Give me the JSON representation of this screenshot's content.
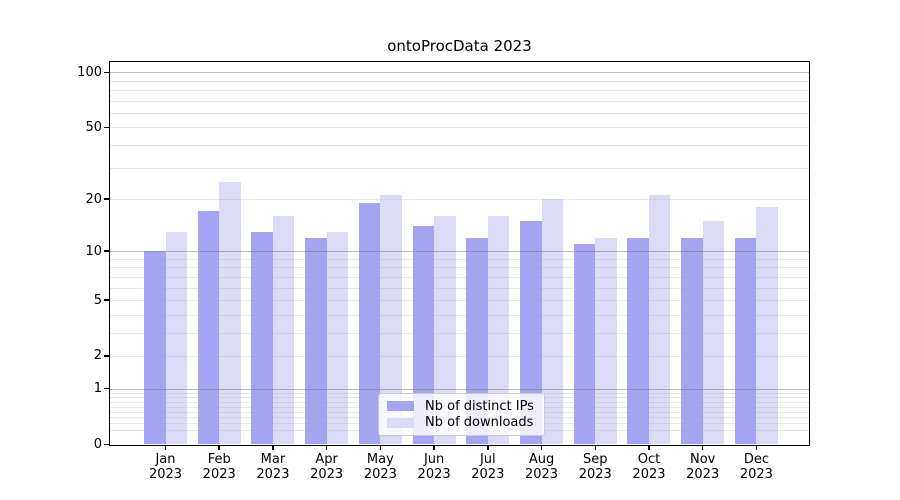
{
  "chart_data": {
    "type": "bar",
    "title": "ontoProcData 2023",
    "categories": [
      "Jan",
      "Feb",
      "Mar",
      "Apr",
      "May",
      "Jun",
      "Jul",
      "Aug",
      "Sep",
      "Oct",
      "Nov",
      "Dec"
    ],
    "year_label": "2023",
    "series": [
      {
        "key": "distinct-ips",
        "name": "Nb of distinct IPs",
        "color": "#a4a4f2",
        "values": [
          10,
          17,
          13,
          12,
          19,
          14,
          12,
          15,
          11,
          12,
          12,
          12
        ]
      },
      {
        "key": "downloads",
        "name": "Nb of downloads",
        "color": "#dbdbf8",
        "values": [
          13,
          25,
          16,
          13,
          21,
          16,
          16,
          20,
          12,
          21,
          15,
          18
        ]
      }
    ],
    "yscale": "log1p",
    "ylim": [
      0,
      114.6
    ],
    "yticks": [
      {
        "v": 100,
        "label": "100"
      },
      {
        "v": 50,
        "label": "50"
      },
      {
        "v": 20,
        "label": "20"
      },
      {
        "v": 10,
        "label": "10"
      },
      {
        "v": 5,
        "label": "5"
      },
      {
        "v": 2,
        "label": "2"
      },
      {
        "v": 1,
        "label": "1"
      },
      {
        "v": 0,
        "label": "0"
      }
    ],
    "major_grid_values": [
      1,
      10,
      100
    ],
    "minor_grid_decades": [
      0.1,
      1,
      10
    ],
    "minor_grid_subs": [
      2,
      3,
      4,
      5,
      6,
      7,
      8,
      9
    ],
    "grid": true,
    "legend_position": "lower center"
  }
}
